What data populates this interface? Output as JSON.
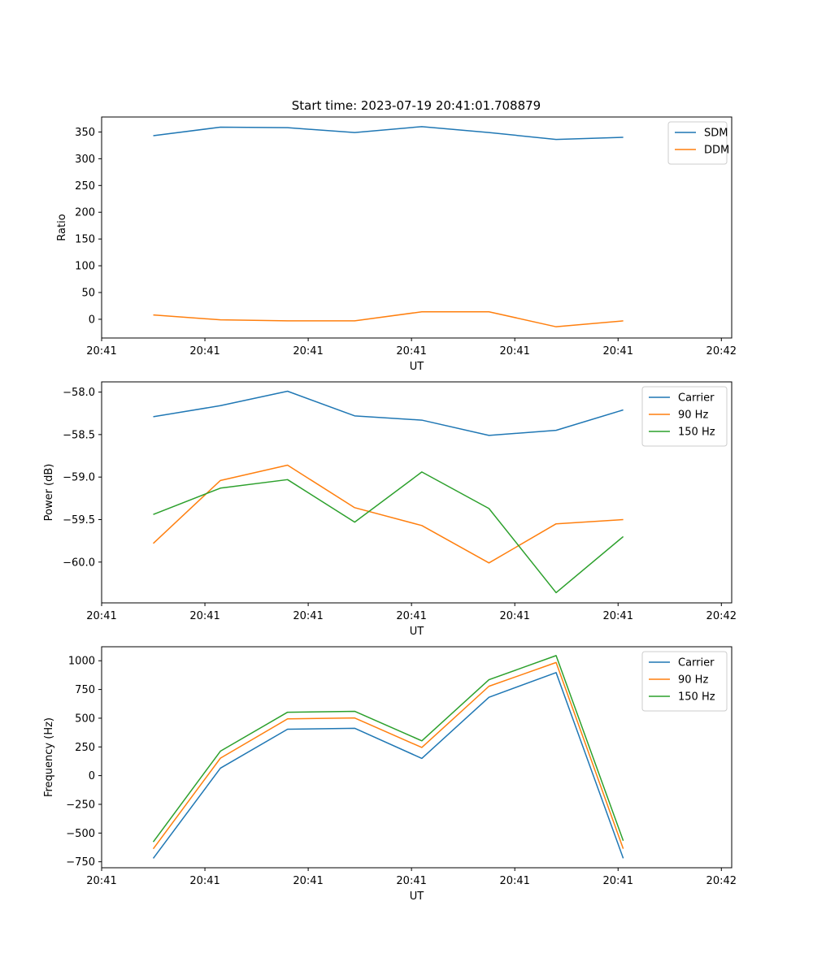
{
  "figure_title": "Start time: 2023-07-19 20:41:01.708879",
  "chart_data": [
    {
      "type": "line",
      "id": "ratio",
      "title": "Start time: 2023-07-19 20:41:01.708879",
      "xlabel": "UT",
      "ylabel": "Ratio",
      "xlim": [
        0.0,
        6.1
      ],
      "xticks": [
        0.0,
        1.0,
        2.0,
        3.0,
        4.0,
        5.0,
        6.0
      ],
      "xtick_labels": [
        "20:41",
        "20:41",
        "20:41",
        "20:41",
        "20:41",
        "20:41",
        "20:42"
      ],
      "ylim": [
        -35,
        378
      ],
      "yticks": [
        0,
        50,
        100,
        150,
        200,
        250,
        300,
        350
      ],
      "ytick_labels": [
        "0",
        "50",
        "100",
        "150",
        "200",
        "250",
        "300",
        "350"
      ],
      "x": [
        0.5,
        1.15,
        1.8,
        2.45,
        3.1,
        3.75,
        4.4,
        5.05
      ],
      "series": [
        {
          "name": "SDM",
          "color": "#1f77b4",
          "values": [
            343,
            359,
            358,
            349,
            360,
            349,
            336,
            340
          ]
        },
        {
          "name": "DDM",
          "color": "#ff7f0e",
          "values": [
            8,
            -1,
            -3,
            -3,
            14,
            14,
            -14,
            -3
          ]
        }
      ],
      "legend": "top-right"
    },
    {
      "type": "line",
      "id": "power",
      "title": "",
      "xlabel": "UT",
      "ylabel": "Power (dB)",
      "xlim": [
        0.0,
        6.1
      ],
      "xticks": [
        0.0,
        1.0,
        2.0,
        3.0,
        4.0,
        5.0,
        6.0
      ],
      "xtick_labels": [
        "20:41",
        "20:41",
        "20:41",
        "20:41",
        "20:41",
        "20:41",
        "20:42"
      ],
      "ylim": [
        -60.48,
        -57.88
      ],
      "yticks": [
        -60.0,
        -59.5,
        -59.0,
        -58.5,
        -58.0
      ],
      "ytick_labels": [
        "−60.0",
        "−59.5",
        "−59.0",
        "−58.5",
        "−58.0"
      ],
      "x": [
        0.5,
        1.15,
        1.8,
        2.45,
        3.1,
        3.75,
        4.4,
        5.05
      ],
      "series": [
        {
          "name": "Carrier",
          "color": "#1f77b4",
          "values": [
            -58.29,
            -58.16,
            -57.99,
            -58.28,
            -58.33,
            -58.51,
            -58.45,
            -58.21
          ]
        },
        {
          "name": "90 Hz",
          "color": "#ff7f0e",
          "values": [
            -59.78,
            -59.04,
            -58.86,
            -59.36,
            -59.57,
            -60.01,
            -59.55,
            -59.5
          ]
        },
        {
          "name": "150 Hz",
          "color": "#2ca02c",
          "values": [
            -59.44,
            -59.13,
            -59.03,
            -59.53,
            -58.94,
            -59.37,
            -60.36,
            -59.7
          ]
        }
      ],
      "legend": "top-right"
    },
    {
      "type": "line",
      "id": "frequency",
      "title": "",
      "xlabel": "UT",
      "ylabel": "Frequency (Hz)",
      "xlim": [
        0.0,
        6.1
      ],
      "xticks": [
        0.0,
        1.0,
        2.0,
        3.0,
        4.0,
        5.0,
        6.0
      ],
      "xtick_labels": [
        "20:41",
        "20:41",
        "20:41",
        "20:41",
        "20:41",
        "20:41",
        "20:42"
      ],
      "ylim": [
        -802,
        1122
      ],
      "yticks": [
        -750,
        -500,
        -250,
        0,
        250,
        500,
        750,
        1000
      ],
      "ytick_labels": [
        "−750",
        "−500",
        "−250",
        "0",
        "250",
        "500",
        "750",
        "1000"
      ],
      "x": [
        0.5,
        1.15,
        1.8,
        2.45,
        3.1,
        3.75,
        4.4,
        5.05
      ],
      "series": [
        {
          "name": "Carrier",
          "color": "#1f77b4",
          "values": [
            -720,
            65,
            404,
            412,
            150,
            682,
            897,
            -720
          ]
        },
        {
          "name": "90 Hz",
          "color": "#ff7f0e",
          "values": [
            -637,
            152,
            494,
            502,
            245,
            778,
            985,
            -637
          ]
        },
        {
          "name": "150 Hz",
          "color": "#2ca02c",
          "values": [
            -577,
            213,
            552,
            560,
            303,
            835,
            1045,
            -567
          ]
        }
      ],
      "legend": "top-right"
    }
  ]
}
